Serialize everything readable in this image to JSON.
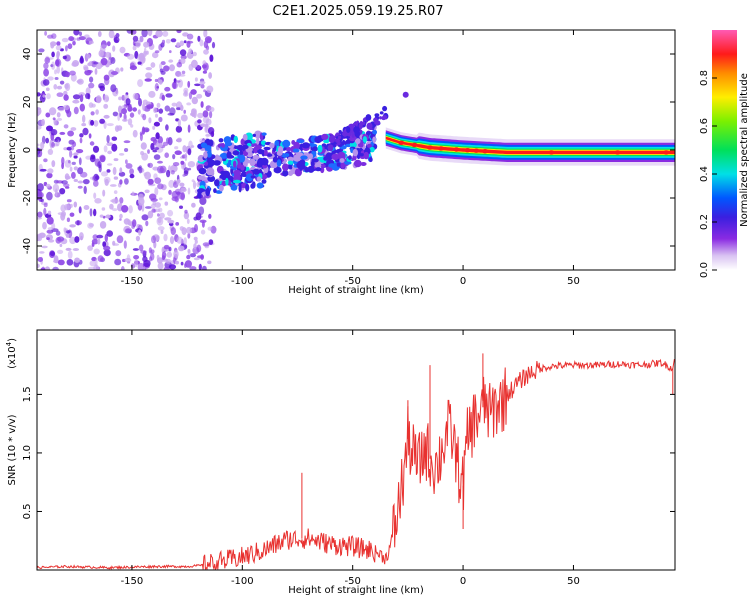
{
  "title": "C2E1.2025.059.19.25.R07",
  "colors": {
    "background": "#ffffff",
    "line": "#e8312f",
    "axis": "#000000",
    "noise_purple": "#7b2ee0"
  },
  "chart_data": [
    {
      "type": "heatmap",
      "name": "spectrogram",
      "xlabel": "Height of straight line (km)",
      "ylabel": "Frequency (Hz)",
      "xlim": [
        -193,
        96
      ],
      "ylim": [
        -50,
        50
      ],
      "xticks": [
        "-150",
        "-100",
        "-50",
        "0",
        "50"
      ],
      "xtick_values": [
        -150,
        -100,
        -50,
        0,
        50
      ],
      "yticks": [
        "-40",
        "-20",
        "0",
        "20",
        "40"
      ],
      "ytick_values": [
        -40,
        -20,
        0,
        20,
        40
      ],
      "colorbar": {
        "label": "Normalized spectral amplitude",
        "range": [
          0,
          1
        ],
        "ticks": [
          "0.0",
          "0.2",
          "0.4",
          "0.6",
          "0.8"
        ],
        "tick_values": [
          0,
          0.2,
          0.4,
          0.6,
          0.8
        ]
      },
      "regions": [
        {
          "name": "noise",
          "x": [
            -193,
            -118
          ],
          "freq": [
            -50,
            50
          ],
          "amplitude": [
            0.0,
            0.3
          ]
        },
        {
          "name": "turbulent-signal",
          "x": [
            -120,
            -40
          ],
          "freq": [
            -18,
            8
          ],
          "amplitude": [
            0.15,
            0.5
          ]
        },
        {
          "name": "sidelobe",
          "x": [
            -60,
            -35
          ],
          "freq": [
            5,
            18
          ],
          "amplitude": [
            0.1,
            0.3
          ]
        },
        {
          "name": "stable-signal",
          "x": [
            -35,
            96
          ],
          "freq": [
            -5,
            5
          ],
          "amplitude": [
            0.5,
            1.0
          ]
        }
      ],
      "center_frequency": [
        {
          "x": -118,
          "f": -8
        },
        {
          "x": -100,
          "f": -5
        },
        {
          "x": -80,
          "f": -3
        },
        {
          "x": -60,
          "f": -1
        },
        {
          "x": -45,
          "f": 1
        },
        {
          "x": -35,
          "f": 5
        },
        {
          "x": -28,
          "f": 3
        },
        {
          "x": -15,
          "f": 1
        },
        {
          "x": 0,
          "f": 0
        },
        {
          "x": 20,
          "f": -1
        },
        {
          "x": 50,
          "f": -1
        },
        {
          "x": 96,
          "f": -1
        }
      ]
    },
    {
      "type": "line",
      "name": "snr",
      "xlabel": "Height of straight line (km)",
      "ylabel": "SNR (10 * v/v)",
      "scale_label": "(x10",
      "scale_exponent": "4",
      "xlim": [
        -193,
        96
      ],
      "ylim": [
        0,
        2.05
      ],
      "xticks": [
        "-150",
        "-100",
        "-50",
        "0",
        "50"
      ],
      "xtick_values": [
        -150,
        -100,
        -50,
        0,
        50
      ],
      "yticks": [
        "0.5",
        "1.0",
        "1.5"
      ],
      "ytick_values": [
        0.5,
        1.0,
        1.5
      ],
      "series": [
        {
          "name": "SNR",
          "color": "#e8312f",
          "x": [
            -193,
            -180,
            -160,
            -140,
            -125,
            -118,
            -110,
            -100,
            -90,
            -80,
            -70,
            -60,
            -50,
            -42,
            -38,
            -35,
            -33,
            -30,
            -27,
            -25,
            -22,
            -20,
            -17,
            -15,
            -12,
            -10,
            -7,
            -5,
            -2,
            0,
            2,
            5,
            8,
            10,
            12,
            15,
            18,
            20,
            25,
            30,
            35,
            40,
            50,
            60,
            70,
            80,
            90,
            95,
            96
          ],
          "y": [
            0.02,
            0.03,
            0.02,
            0.03,
            0.03,
            0.04,
            0.07,
            0.11,
            0.17,
            0.26,
            0.27,
            0.22,
            0.2,
            0.17,
            0.14,
            0.1,
            0.2,
            0.45,
            0.8,
            1.12,
            0.95,
            0.9,
            1.05,
            0.95,
            0.88,
            1.0,
            1.2,
            1.15,
            0.85,
            0.72,
            1.12,
            1.28,
            1.35,
            1.43,
            1.32,
            1.4,
            1.45,
            1.5,
            1.6,
            1.68,
            1.72,
            1.74,
            1.75,
            1.75,
            1.76,
            1.75,
            1.77,
            1.72,
            1.82
          ]
        }
      ],
      "spikes": [
        {
          "x": -73,
          "y": 0.83
        },
        {
          "x": -25,
          "y": 1.45
        },
        {
          "x": -15,
          "y": 1.75
        },
        {
          "x": 0,
          "y": 0.35
        },
        {
          "x": 9,
          "y": 1.85
        },
        {
          "x": 95,
          "y": 1.5
        }
      ]
    }
  ]
}
